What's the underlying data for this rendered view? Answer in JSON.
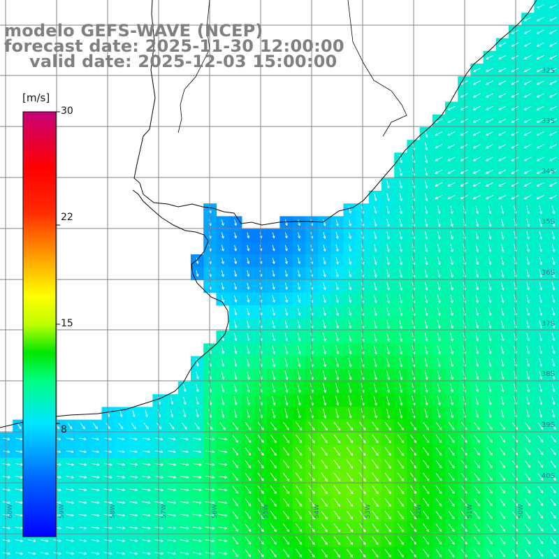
{
  "title": {
    "line1": "modelo GEFS-WAVE (NCEP)",
    "line2": "forecast date: 2025-11-30 12:00:00",
    "line3": "valid date: 2025-12-03 15:00:00"
  },
  "colorbar": {
    "unit": "[m/s]",
    "min": 0,
    "max": 30,
    "ticks": [
      "30",
      "22",
      "15",
      "8"
    ],
    "tick_values": [
      30,
      22,
      15,
      8
    ],
    "colors": [
      "#0000ff",
      "#0078ff",
      "#00e8ff",
      "#00ff60",
      "#00e000",
      "#c8ff00",
      "#ffff00",
      "#ff9600",
      "#ff2000",
      "#ff0000",
      "#c00060",
      "#c00080"
    ]
  },
  "lat_labels": [
    "32S",
    "33S",
    "34S",
    "35S",
    "36S",
    "37S",
    "38S",
    "39S",
    "40S"
  ],
  "lon_labels": [
    "60W",
    "59W",
    "58W",
    "57W",
    "56W",
    "55W",
    "54W",
    "53W",
    "52W",
    "51W",
    "50W"
  ],
  "colors": {
    "land": "#ffffff",
    "grid": "#808080",
    "coast": "#000000",
    "arrows": "#ffffff",
    "title_text": "#7f7f7f"
  }
}
